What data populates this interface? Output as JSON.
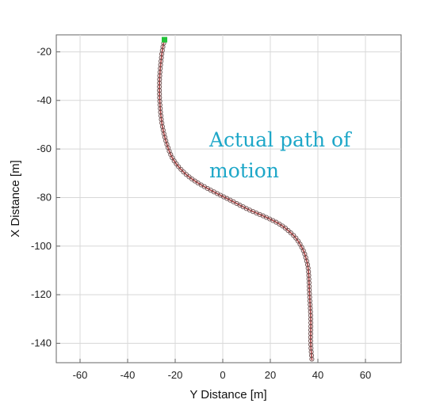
{
  "chart_data": {
    "type": "scatter",
    "title": "",
    "xlabel": "Y Distance [m]",
    "ylabel": "X Distance [m]",
    "xlim": [
      -70,
      75
    ],
    "ylim": [
      -148,
      -13
    ],
    "xticks": [
      -60,
      -40,
      -20,
      0,
      20,
      40,
      60
    ],
    "yticks": [
      -20,
      -40,
      -60,
      -80,
      -100,
      -120,
      -140
    ],
    "grid": true,
    "annotation": "Actual path of motion",
    "colors": {
      "path_line": "#b04040",
      "path_markers": "#6a4a4a",
      "start_marker": "#22c33a",
      "annotation": "#1ea7c8",
      "grid": "#d8d8d8"
    },
    "start_point": {
      "y_distance": -24.5,
      "x_distance": -15
    },
    "series": [
      {
        "name": "",
        "points": [
          [
            -24.5,
            -15
          ],
          [
            -25.5,
            -20
          ],
          [
            -26.5,
            -30
          ],
          [
            -26.5,
            -40
          ],
          [
            -25.5,
            -50
          ],
          [
            -23.5,
            -58
          ],
          [
            -21,
            -64
          ],
          [
            -17,
            -69
          ],
          [
            -12,
            -73
          ],
          [
            -5,
            -77
          ],
          [
            3,
            -81
          ],
          [
            11,
            -85
          ],
          [
            18,
            -88
          ],
          [
            24,
            -91
          ],
          [
            28,
            -94
          ],
          [
            31,
            -97
          ],
          [
            33.5,
            -101
          ],
          [
            35,
            -105
          ],
          [
            36,
            -110
          ],
          [
            36.5,
            -120
          ],
          [
            37,
            -130
          ],
          [
            37,
            -140
          ],
          [
            37.5,
            -147
          ]
        ]
      }
    ]
  }
}
